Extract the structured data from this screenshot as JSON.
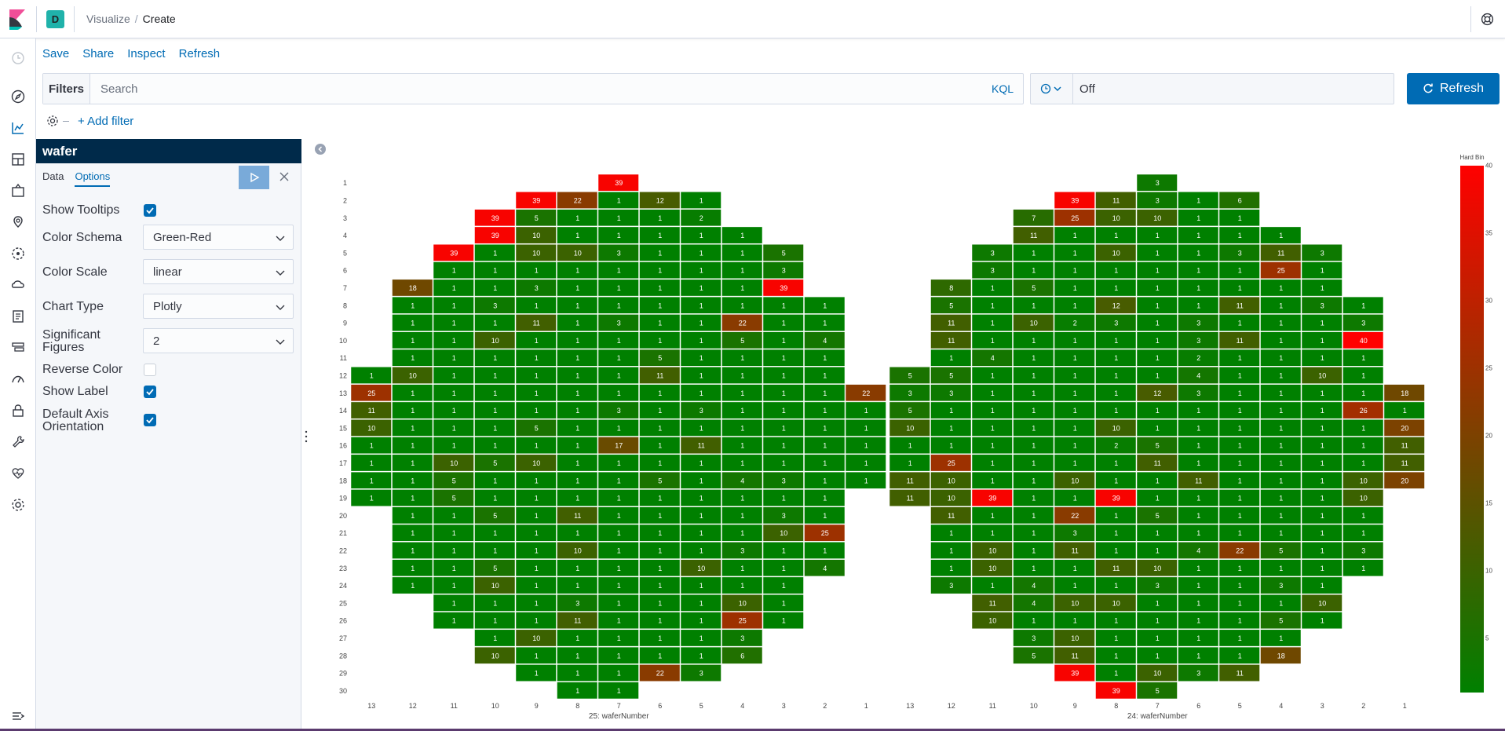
{
  "header": {
    "space_initial": "D",
    "breadcrumb_1": "Visualize",
    "breadcrumb_sep": "/",
    "breadcrumb_2": "Create"
  },
  "topmenu": {
    "save": "Save",
    "share": "Share",
    "inspect": "Inspect",
    "refresh": "Refresh"
  },
  "query": {
    "filters_label": "Filters",
    "search_placeholder": "Search",
    "language": "KQL",
    "refresh_interval": "Off",
    "refresh_button": "Refresh",
    "add_filter": "+ Add filter"
  },
  "editor": {
    "title": "wafer",
    "tabs": [
      "Data",
      "Options"
    ],
    "active_tab": "Options",
    "options": {
      "show_tooltips": {
        "label": "Show Tooltips",
        "checked": true
      },
      "color_schema": {
        "label": "Color Schema",
        "value": "Green-Red"
      },
      "color_scale": {
        "label": "Color Scale",
        "value": "linear"
      },
      "chart_type": {
        "label": "Chart Type",
        "value": "Plotly"
      },
      "significant_figures": {
        "label_1": "Significant",
        "label_2": "Figures",
        "value": "2"
      },
      "reverse_color": {
        "label": "Reverse Color",
        "checked": false
      },
      "show_label": {
        "label": "Show Label",
        "checked": true
      },
      "default_axis": {
        "label_1": "Default Axis",
        "label_2": "Orientation",
        "checked": true
      }
    }
  },
  "colors": {
    "accent": "#006bb4",
    "low": "#008000",
    "high": "#ff0000"
  },
  "chart_data": {
    "type": "heatmap",
    "y_categories": [
      1,
      2,
      3,
      4,
      5,
      6,
      7,
      8,
      9,
      10,
      11,
      12,
      13,
      14,
      15,
      16,
      17,
      18,
      19,
      20,
      21,
      22,
      23,
      24,
      25,
      26,
      27,
      28,
      29,
      30
    ],
    "x_categories": [
      13,
      12,
      11,
      10,
      9,
      8,
      7,
      6,
      5,
      4,
      3,
      2,
      1
    ],
    "colorbar": {
      "title": "Hard Bin",
      "range": [
        1,
        40
      ],
      "ticks": [
        5,
        10,
        15,
        20,
        25,
        30,
        35,
        40
      ],
      "colors": [
        "#008000",
        "#ff0000"
      ]
    },
    "panels": [
      {
        "xlabel": "25: waferNumber",
        "rows": [
          [
            null,
            null,
            null,
            null,
            null,
            null,
            39,
            null,
            null,
            null,
            null,
            null,
            null
          ],
          [
            null,
            null,
            null,
            null,
            39,
            22,
            1,
            12,
            1,
            null,
            null,
            null,
            null
          ],
          [
            null,
            null,
            null,
            39,
            5,
            1,
            1,
            1,
            2,
            null,
            null,
            null,
            null
          ],
          [
            null,
            null,
            null,
            39,
            10,
            1,
            1,
            1,
            1,
            1,
            null,
            null,
            null
          ],
          [
            null,
            null,
            39,
            1,
            10,
            10,
            3,
            1,
            1,
            1,
            5,
            null,
            null
          ],
          [
            null,
            null,
            1,
            1,
            1,
            1,
            1,
            1,
            1,
            1,
            3,
            null,
            null
          ],
          [
            null,
            18,
            1,
            1,
            3,
            1,
            1,
            1,
            1,
            1,
            39,
            null,
            null
          ],
          [
            null,
            1,
            1,
            3,
            1,
            1,
            1,
            1,
            1,
            1,
            1,
            1,
            null
          ],
          [
            null,
            1,
            1,
            1,
            11,
            1,
            3,
            1,
            1,
            22,
            1,
            1,
            null
          ],
          [
            null,
            1,
            1,
            10,
            1,
            1,
            1,
            1,
            1,
            5,
            1,
            4,
            null
          ],
          [
            null,
            1,
            1,
            1,
            1,
            1,
            1,
            5,
            1,
            1,
            1,
            1,
            null
          ],
          [
            1,
            10,
            1,
            1,
            1,
            1,
            1,
            11,
            1,
            1,
            1,
            1,
            null
          ],
          [
            25,
            1,
            1,
            1,
            1,
            1,
            1,
            1,
            1,
            1,
            1,
            1,
            22
          ],
          [
            11,
            1,
            1,
            1,
            1,
            1,
            3,
            1,
            3,
            1,
            1,
            1,
            1
          ],
          [
            10,
            1,
            1,
            1,
            5,
            1,
            1,
            1,
            1,
            1,
            1,
            1,
            1
          ],
          [
            1,
            1,
            1,
            1,
            1,
            1,
            17,
            1,
            11,
            1,
            1,
            1,
            1
          ],
          [
            1,
            1,
            10,
            5,
            10,
            1,
            1,
            1,
            1,
            1,
            1,
            1,
            1
          ],
          [
            1,
            1,
            5,
            1,
            1,
            1,
            1,
            5,
            1,
            4,
            3,
            1,
            1
          ],
          [
            1,
            1,
            5,
            1,
            1,
            1,
            1,
            1,
            1,
            1,
            1,
            1,
            null
          ],
          [
            null,
            1,
            1,
            5,
            1,
            11,
            1,
            1,
            1,
            1,
            3,
            1,
            null
          ],
          [
            null,
            1,
            1,
            1,
            1,
            1,
            1,
            1,
            1,
            1,
            10,
            25,
            null
          ],
          [
            null,
            1,
            1,
            1,
            1,
            10,
            1,
            1,
            1,
            3,
            1,
            1,
            null
          ],
          [
            null,
            1,
            1,
            5,
            1,
            1,
            1,
            1,
            10,
            1,
            1,
            4,
            null
          ],
          [
            null,
            1,
            1,
            10,
            1,
            1,
            1,
            1,
            1,
            1,
            1,
            null,
            null
          ],
          [
            null,
            null,
            1,
            1,
            1,
            3,
            1,
            1,
            1,
            10,
            1,
            null,
            null
          ],
          [
            null,
            null,
            1,
            1,
            1,
            11,
            1,
            1,
            1,
            25,
            1,
            null,
            null
          ],
          [
            null,
            null,
            null,
            1,
            10,
            1,
            1,
            1,
            1,
            3,
            null,
            null,
            null
          ],
          [
            null,
            null,
            null,
            10,
            1,
            1,
            1,
            1,
            1,
            6,
            null,
            null,
            null
          ],
          [
            null,
            null,
            null,
            null,
            1,
            1,
            1,
            22,
            3,
            null,
            null,
            null,
            null
          ],
          [
            null,
            null,
            null,
            null,
            null,
            1,
            1,
            null,
            null,
            null,
            null,
            null,
            null
          ]
        ]
      },
      {
        "xlabel": "24: waferNumber",
        "rows": [
          [
            null,
            null,
            null,
            null,
            null,
            null,
            3,
            null,
            null,
            null,
            null,
            null,
            null
          ],
          [
            null,
            null,
            null,
            null,
            39,
            11,
            3,
            1,
            6,
            null,
            null,
            null,
            null
          ],
          [
            null,
            null,
            null,
            7,
            25,
            10,
            10,
            1,
            1,
            null,
            null,
            null,
            null
          ],
          [
            null,
            null,
            null,
            11,
            1,
            1,
            1,
            1,
            1,
            1,
            null,
            null,
            null
          ],
          [
            null,
            null,
            3,
            1,
            1,
            10,
            1,
            1,
            3,
            11,
            3,
            null,
            null
          ],
          [
            null,
            null,
            3,
            1,
            1,
            1,
            1,
            1,
            1,
            25,
            1,
            null,
            null
          ],
          [
            null,
            8,
            1,
            5,
            1,
            1,
            1,
            1,
            1,
            1,
            1,
            null,
            null
          ],
          [
            null,
            5,
            1,
            1,
            1,
            12,
            1,
            1,
            11,
            1,
            3,
            1,
            null
          ],
          [
            null,
            11,
            1,
            10,
            2,
            3,
            1,
            3,
            1,
            1,
            1,
            3,
            null
          ],
          [
            null,
            11,
            1,
            1,
            1,
            1,
            1,
            3,
            11,
            1,
            1,
            40,
            null
          ],
          [
            null,
            1,
            4,
            1,
            1,
            1,
            1,
            2,
            1,
            1,
            1,
            1,
            null
          ],
          [
            5,
            5,
            1,
            1,
            1,
            1,
            1,
            4,
            1,
            1,
            10,
            1,
            null
          ],
          [
            3,
            3,
            1,
            1,
            1,
            1,
            12,
            3,
            1,
            1,
            1,
            1,
            18
          ],
          [
            5,
            1,
            1,
            1,
            1,
            1,
            1,
            1,
            1,
            1,
            1,
            26,
            1
          ],
          [
            10,
            1,
            1,
            1,
            1,
            10,
            1,
            1,
            1,
            1,
            1,
            1,
            20
          ],
          [
            1,
            1,
            1,
            1,
            1,
            2,
            5,
            1,
            1,
            1,
            1,
            1,
            11
          ],
          [
            1,
            25,
            1,
            1,
            1,
            1,
            11,
            1,
            1,
            1,
            1,
            1,
            11
          ],
          [
            11,
            10,
            1,
            1,
            10,
            1,
            1,
            11,
            1,
            1,
            1,
            10,
            20
          ],
          [
            11,
            10,
            39,
            1,
            1,
            39,
            1,
            1,
            1,
            1,
            1,
            10,
            null
          ],
          [
            null,
            11,
            1,
            1,
            22,
            1,
            5,
            1,
            1,
            1,
            1,
            1,
            null
          ],
          [
            null,
            1,
            1,
            1,
            3,
            1,
            1,
            1,
            1,
            1,
            1,
            1,
            null
          ],
          [
            null,
            1,
            10,
            1,
            11,
            1,
            1,
            4,
            22,
            5,
            1,
            3,
            null
          ],
          [
            null,
            1,
            10,
            1,
            1,
            11,
            10,
            1,
            1,
            1,
            1,
            1,
            null
          ],
          [
            null,
            3,
            1,
            4,
            1,
            1,
            3,
            1,
            1,
            3,
            1,
            null,
            null
          ],
          [
            null,
            null,
            11,
            4,
            10,
            10,
            1,
            1,
            1,
            1,
            10,
            null,
            null
          ],
          [
            null,
            null,
            10,
            1,
            1,
            1,
            1,
            1,
            1,
            5,
            1,
            null,
            null
          ],
          [
            null,
            null,
            null,
            3,
            10,
            1,
            1,
            1,
            1,
            1,
            null,
            null,
            null
          ],
          [
            null,
            null,
            null,
            5,
            11,
            1,
            1,
            1,
            1,
            18,
            null,
            null,
            null
          ],
          [
            null,
            null,
            null,
            null,
            39,
            1,
            10,
            3,
            11,
            null,
            null,
            null,
            null
          ],
          [
            null,
            null,
            null,
            null,
            null,
            39,
            5,
            null,
            null,
            null,
            null,
            null,
            null
          ]
        ]
      }
    ]
  }
}
